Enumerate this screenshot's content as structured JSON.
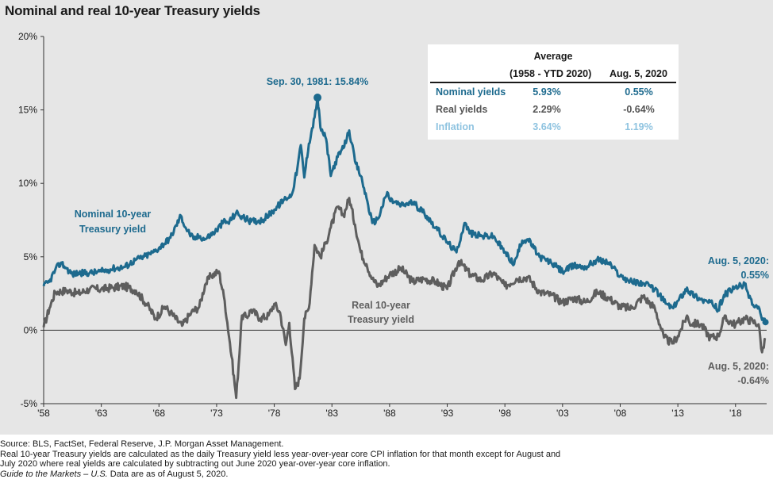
{
  "title": "Nominal and real 10-year Treasury yields",
  "colors": {
    "nominal": "#1d6a8e",
    "real": "#5e5e5e",
    "inflation": "#8ec3e0",
    "panel": "#e6e6e6"
  },
  "chart_data": {
    "type": "line",
    "title": "Nominal and real 10-year Treasury yields",
    "ylim": [
      -5,
      20
    ],
    "xlim": [
      1958,
      2020.7
    ],
    "y_ticks": [
      "-5%",
      "0%",
      "5%",
      "10%",
      "15%",
      "20%"
    ],
    "x_ticks": [
      "'58",
      "'63",
      "'68",
      "'73",
      "'78",
      "'83",
      "'88",
      "'93",
      "'98",
      "'03",
      "'08",
      "'13",
      "'18"
    ],
    "series": [
      {
        "name": "Nominal 10-year Treasury yield",
        "x": [
          1958.0,
          1958.5,
          1959.0,
          1959.5,
          1960.0,
          1960.5,
          1961.0,
          1962.0,
          1963.0,
          1964.0,
          1965.0,
          1966.0,
          1966.7,
          1967.5,
          1968.0,
          1969.0,
          1969.9,
          1970.3,
          1971.0,
          1971.5,
          1972.0,
          1973.0,
          1973.6,
          1974.0,
          1974.7,
          1975.0,
          1976.0,
          1977.0,
          1978.0,
          1979.0,
          1979.5,
          1980.0,
          1980.3,
          1980.6,
          1981.0,
          1981.5,
          1981.75,
          1982.0,
          1982.5,
          1982.9,
          1983.0,
          1983.5,
          1984.0,
          1984.5,
          1985.0,
          1985.5,
          1986.0,
          1986.5,
          1987.0,
          1987.8,
          1988.0,
          1989.0,
          1990.0,
          1991.0,
          1992.0,
          1993.0,
          1993.8,
          1994.5,
          1995.0,
          1996.0,
          1997.0,
          1998.0,
          1998.8,
          1999.5,
          2000.0,
          2001.0,
          2002.0,
          2003.0,
          2004.0,
          2005.0,
          2006.0,
          2007.0,
          2008.0,
          2009.0,
          2010.0,
          2011.0,
          2012.0,
          2012.6,
          2013.0,
          2013.8,
          2014.0,
          2015.0,
          2016.0,
          2016.5,
          2017.0,
          2018.0,
          2018.8,
          2019.0,
          2019.6,
          2020.0,
          2020.3,
          2020.6
        ],
        "values": [
          3.0,
          3.3,
          4.1,
          4.6,
          4.2,
          3.8,
          3.9,
          3.9,
          4.0,
          4.2,
          4.3,
          4.8,
          5.0,
          5.3,
          5.6,
          6.3,
          7.8,
          7.0,
          6.2,
          6.4,
          6.2,
          6.8,
          7.4,
          7.3,
          8.0,
          7.8,
          7.4,
          7.5,
          8.2,
          9.0,
          9.2,
          11.0,
          12.6,
          10.4,
          12.7,
          14.5,
          15.84,
          13.8,
          13.0,
          10.5,
          10.8,
          11.8,
          12.4,
          13.6,
          11.5,
          10.5,
          9.0,
          7.3,
          7.6,
          9.4,
          8.9,
          8.5,
          8.7,
          8.0,
          7.0,
          6.0,
          5.3,
          7.3,
          6.6,
          6.4,
          6.4,
          5.3,
          4.5,
          6.1,
          6.2,
          5.0,
          4.6,
          4.0,
          4.4,
          4.3,
          4.8,
          4.6,
          3.7,
          3.3,
          3.2,
          2.8,
          1.8,
          1.5,
          2.0,
          2.9,
          2.6,
          2.1,
          1.8,
          1.4,
          2.4,
          2.9,
          3.1,
          2.7,
          1.6,
          1.6,
          0.7,
          0.55
        ]
      },
      {
        "name": "Real 10-year Treasury yield",
        "x": [
          1958.0,
          1958.5,
          1959.0,
          1960.0,
          1961.0,
          1962.0,
          1963.0,
          1964.0,
          1965.0,
          1966.0,
          1967.0,
          1967.7,
          1968.5,
          1969.0,
          1970.0,
          1970.8,
          1971.5,
          1972.0,
          1972.5,
          1973.2,
          1973.7,
          1974.3,
          1974.7,
          1975.2,
          1975.6,
          1976.0,
          1976.8,
          1977.5,
          1978.0,
          1978.5,
          1979.0,
          1979.3,
          1979.8,
          1980.2,
          1980.6,
          1981.0,
          1981.5,
          1982.0,
          1982.5,
          1982.9,
          1983.5,
          1984.0,
          1984.5,
          1985.0,
          1985.5,
          1986.0,
          1986.5,
          1987.0,
          1988.0,
          1989.0,
          1990.0,
          1991.0,
          1992.0,
          1993.0,
          1994.0,
          1995.0,
          1996.0,
          1997.0,
          1998.0,
          1999.0,
          2000.0,
          2001.0,
          2002.0,
          2003.0,
          2004.0,
          2005.0,
          2006.0,
          2007.0,
          2008.0,
          2009.0,
          2010.0,
          2011.0,
          2011.8,
          2012.5,
          2013.0,
          2013.8,
          2014.0,
          2015.0,
          2015.8,
          2016.5,
          2017.0,
          2018.0,
          2018.8,
          2019.5,
          2020.0,
          2020.3,
          2020.6
        ],
        "values": [
          0.2,
          1.5,
          2.6,
          2.7,
          2.5,
          2.8,
          2.8,
          2.9,
          3.0,
          2.7,
          1.7,
          0.8,
          1.6,
          1.2,
          0.3,
          1.2,
          1.6,
          3.1,
          3.7,
          4.0,
          2.0,
          -1.8,
          -4.6,
          1.0,
          0.9,
          1.4,
          0.8,
          1.0,
          1.8,
          1.2,
          -1.0,
          0.5,
          -4.0,
          -3.3,
          0.8,
          1.5,
          5.8,
          5.0,
          6.0,
          7.0,
          8.4,
          7.8,
          9.0,
          7.2,
          5.3,
          4.5,
          3.5,
          3.0,
          3.8,
          4.2,
          3.3,
          3.5,
          3.3,
          2.8,
          4.7,
          3.8,
          3.4,
          3.9,
          3.0,
          3.5,
          3.6,
          2.6,
          2.4,
          1.9,
          2.2,
          1.9,
          2.6,
          2.2,
          1.6,
          1.5,
          2.3,
          1.5,
          -0.5,
          -0.9,
          -0.4,
          1.0,
          0.5,
          0.4,
          -0.5,
          -0.4,
          0.8,
          0.4,
          0.8,
          0.6,
          0.4,
          -1.5,
          -0.64
        ]
      }
    ],
    "annotations": {
      "peak": "Sep. 30, 1981: 15.84%",
      "peak_x": 1981.75,
      "peak_y": 15.84,
      "nominal_label": [
        "Nominal 10-year",
        "Treasury yield"
      ],
      "real_label": [
        "Real 10-year",
        "Treasury yield"
      ],
      "nominal_end": [
        "Aug. 5, 2020:",
        "0.55%"
      ],
      "real_end": [
        "Aug. 5, 2020:",
        "-0.64%"
      ]
    }
  },
  "table": {
    "header": "Average",
    "col1": "(1958 - YTD 2020)",
    "col2": "Aug. 5, 2020",
    "rows": [
      {
        "label": "Nominal yields",
        "avg": "5.93%",
        "current": "0.55%"
      },
      {
        "label": "Real yields",
        "avg": "2.29%",
        "current": "-0.64%"
      },
      {
        "label": "Inflation",
        "avg": "3.64%",
        "current": "1.19%"
      }
    ]
  },
  "footer": {
    "line1": "Source: BLS, FactSet, Federal Reserve, J.P. Morgan Asset Management.",
    "line2": "Real 10-year Treasury yields are calculated as the daily Treasury yield less year-over-year core CPI inflation for that month except for August and",
    "line3": "July 2020 where real yields are calculated by subtracting out June 2020 year-over-year core inflation.",
    "line4_italic": "Guide to the Markets – U.S.",
    "line4_rest": " Data are as of August 5, 2020."
  }
}
